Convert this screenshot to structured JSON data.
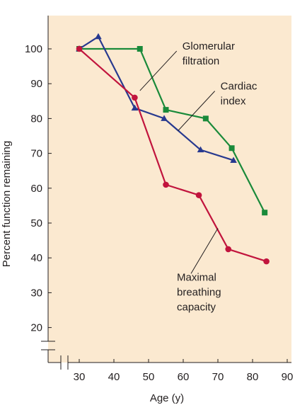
{
  "chart_data": {
    "type": "line",
    "xlabel": "Age (y)",
    "ylabel": "Percent function remaining",
    "xlim": [
      25,
      90
    ],
    "ylim": [
      15,
      105
    ],
    "x_ticks": [
      "30",
      "40",
      "50",
      "60",
      "70",
      "80",
      "90"
    ],
    "y_ticks": [
      "20",
      "30",
      "40",
      "50",
      "60",
      "70",
      "80",
      "90",
      "100"
    ],
    "grid": false,
    "background": "#fbe9d0",
    "axis_breaks": [
      "x",
      "y"
    ],
    "series": [
      {
        "name": "Glomerular filtration",
        "color": "#1a8a3a",
        "marker": "square",
        "points": [
          [
            30,
            100
          ],
          [
            47.5,
            100
          ],
          [
            55,
            82.5
          ],
          [
            66.5,
            80
          ],
          [
            74,
            71.5
          ],
          [
            83.5,
            53
          ]
        ]
      },
      {
        "name": "Cardiac index",
        "color": "#27398f",
        "marker": "triangle",
        "points": [
          [
            30,
            100
          ],
          [
            35.5,
            103.5
          ],
          [
            46,
            83
          ],
          [
            54.5,
            80
          ],
          [
            65,
            71
          ],
          [
            74.5,
            68
          ]
        ]
      },
      {
        "name": "Maximal breathing capacity",
        "color": "#c1143d",
        "marker": "circle",
        "points": [
          [
            30,
            100
          ],
          [
            46,
            86
          ],
          [
            55,
            61
          ],
          [
            64.5,
            58
          ],
          [
            73,
            42.5
          ],
          [
            84,
            39
          ]
        ]
      }
    ],
    "annotations": [
      {
        "series": 0,
        "lines": [
          "Glomerular",
          "filtration"
        ],
        "point": [
          47.5,
          88
        ],
        "text_pos": "upper-right"
      },
      {
        "series": 1,
        "lines": [
          "Cardiac",
          "index"
        ],
        "point": [
          58.5,
          76.5
        ],
        "text_pos": "upper-right"
      },
      {
        "series": 2,
        "lines": [
          "Maximal",
          "breathing",
          "capacity"
        ],
        "point": [
          70,
          48.5
        ],
        "text_pos": "lower-left"
      }
    ]
  }
}
